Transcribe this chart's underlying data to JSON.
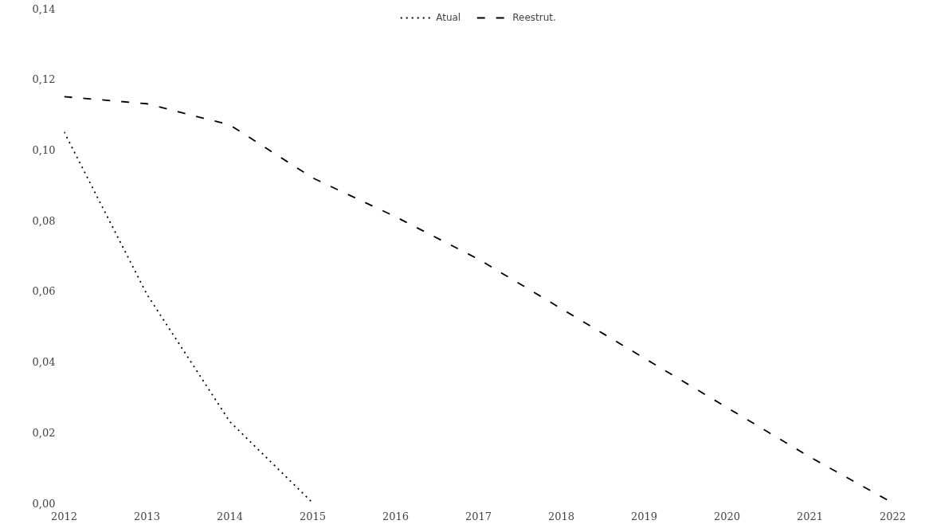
{
  "chart_data": {
    "type": "line",
    "x": [
      2012,
      2013,
      2014,
      2015,
      2016,
      2017,
      2018,
      2019,
      2020,
      2021,
      2022
    ],
    "series": [
      {
        "name": "Atual",
        "color": "#000000",
        "line_style": "dotted",
        "x": [
          2012,
          2013,
          2014,
          2015
        ],
        "values": [
          0.105,
          0.059,
          0.023,
          0.0
        ]
      },
      {
        "name": "Reestrut.",
        "color": "#000000",
        "line_style": "dashed",
        "values": [
          0.115,
          0.113,
          0.107,
          0.092,
          0.081,
          0.069,
          0.055,
          0.041,
          0.027,
          0.013,
          0.0
        ]
      }
    ],
    "xlim": [
      2012,
      2022
    ],
    "xticks": [
      2012,
      2013,
      2014,
      2015,
      2016,
      2017,
      2018,
      2019,
      2020,
      2021,
      2022
    ],
    "ylim": [
      0,
      0.14
    ],
    "yticks": [
      {
        "value": 0,
        "label": "0,00"
      },
      {
        "value": 0.02,
        "label": "0,02"
      },
      {
        "value": 0.04,
        "label": "0,04"
      },
      {
        "value": 0.06,
        "label": "0,06"
      },
      {
        "value": 0.08,
        "label": "0,08"
      },
      {
        "value": 0.1,
        "label": "0,10"
      },
      {
        "value": 0.12,
        "label": "0,12"
      },
      {
        "value": 0.14,
        "label": "0,14"
      }
    ],
    "grid": false,
    "legend": "top",
    "marker": "none"
  }
}
